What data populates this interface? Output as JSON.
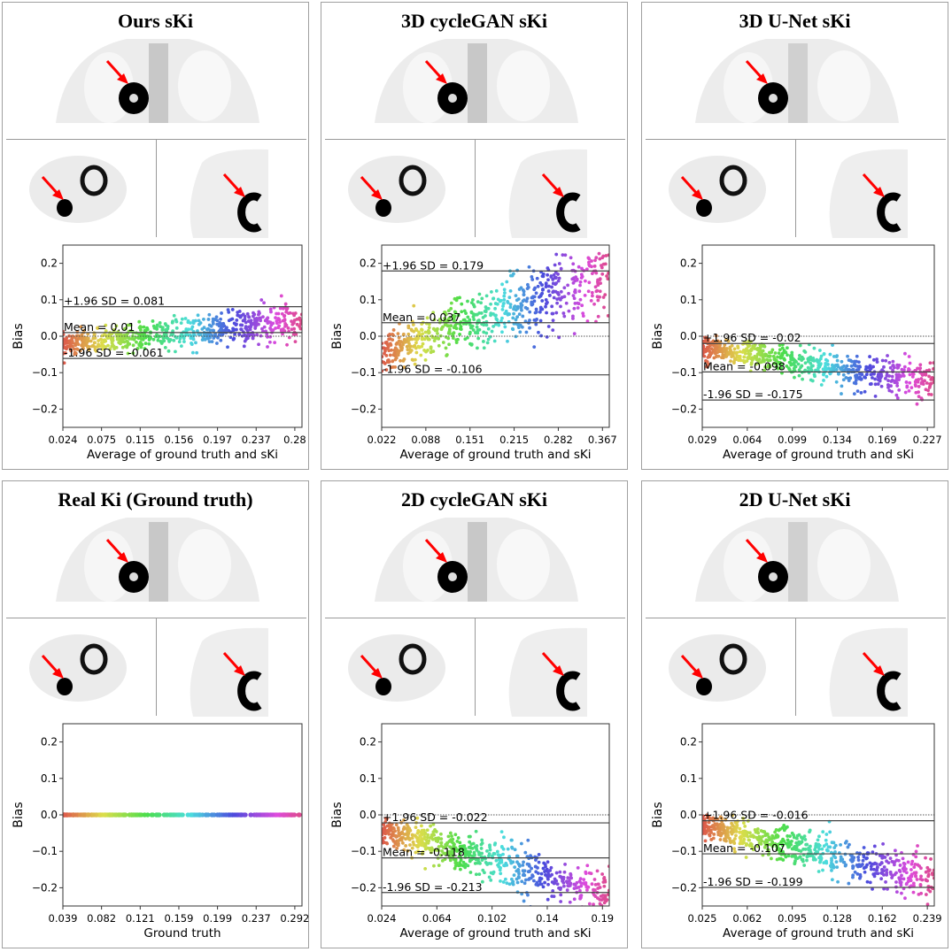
{
  "colors": {
    "line": "#444444",
    "arrow": "#ff0000",
    "lesion": "#000000",
    "tissue": "#d8d8d8"
  },
  "chart_data": [
    {
      "type": "scatter",
      "title": "Ours sKi",
      "xlabel": "Average of ground truth and sKi",
      "ylabel": "Bias",
      "ylim": [
        -0.25,
        0.25
      ],
      "yticks": [
        "0.2",
        "0.1",
        "0.0",
        "−0.1",
        "−0.2"
      ],
      "ytick_values": [
        0.2,
        0.1,
        0,
        -0.1,
        -0.2
      ],
      "xlim": [
        0.024,
        0.29
      ],
      "xticks": [
        "0.024",
        "0.075",
        "0.115",
        "0.156",
        "0.197",
        "0.237",
        "0.28"
      ],
      "upper": {
        "value": 0.081,
        "label": "+1.96 SD = 0.081"
      },
      "mean": {
        "value": 0.01,
        "label": "Mean = 0.01"
      },
      "lower": {
        "value": -0.061,
        "label": "-1.96 SD = -0.061"
      },
      "trend": [
        -0.025,
        0.045
      ],
      "zero_line": "dotted",
      "grid": false
    },
    {
      "type": "scatter",
      "title": "3D cycleGAN sKi",
      "xlabel": "Average of ground truth and sKi",
      "ylabel": "Bias",
      "ylim": [
        -0.25,
        0.25
      ],
      "yticks": [
        "0.2",
        "0.1",
        "0.0",
        "−0.1",
        "−0.2"
      ],
      "ytick_values": [
        0.2,
        0.1,
        0,
        -0.1,
        -0.2
      ],
      "xlim": [
        0.022,
        0.369
      ],
      "xticks": [
        "0.022",
        "0.088",
        "0.151",
        "0.215",
        "0.282",
        "0.367"
      ],
      "upper": {
        "value": 0.179,
        "label": "+1.96 SD = 0.179"
      },
      "mean": {
        "value": 0.037,
        "label": "Mean = 0.037"
      },
      "lower": {
        "value": -0.106,
        "label": "-1.96 SD = -0.106"
      },
      "trend": [
        -0.045,
        0.165
      ],
      "zero_line": "dotted",
      "grid": false
    },
    {
      "type": "scatter",
      "title": "3D U-Net sKi",
      "xlabel": "Average of ground truth and sKi",
      "ylabel": "Bias",
      "ylim": [
        -0.25,
        0.25
      ],
      "yticks": [
        "0.2",
        "0.1",
        "0.0",
        "−0.1",
        "−0.2"
      ],
      "ytick_values": [
        0.2,
        0.1,
        0,
        -0.1,
        -0.2
      ],
      "xlim": [
        0.029,
        0.232
      ],
      "xticks": [
        "0.029",
        "0.064",
        "0.099",
        "0.134",
        "0.169",
        "0.227"
      ],
      "upper": {
        "value": -0.02,
        "label": "+1.96 SD = -0.02"
      },
      "mean": {
        "value": -0.098,
        "label": "Mean = -0.098"
      },
      "lower": {
        "value": -0.175,
        "label": "-1.96 SD = -0.175"
      },
      "trend": [
        -0.03,
        -0.13
      ],
      "zero_line": "dotted",
      "grid": false
    },
    {
      "type": "scatter",
      "title": "Real Ki (Ground truth)",
      "xlabel": "Ground truth",
      "ylabel": "Bias",
      "ylim": [
        -0.25,
        0.25
      ],
      "yticks": [
        "0.2",
        "0.1",
        "0.0",
        "−0.1",
        "−0.2"
      ],
      "ytick_values": [
        0.2,
        0.1,
        0,
        -0.1,
        -0.2
      ],
      "xlim": [
        0.039,
        0.293
      ],
      "xticks": [
        "0.039",
        "0.082",
        "0.121",
        "0.159",
        "0.199",
        "0.237",
        "0.292"
      ],
      "trend": [
        0,
        0
      ],
      "grid": false
    },
    {
      "type": "scatter",
      "title": "2D cycleGAN sKi",
      "xlabel": "Average of ground truth and sKi",
      "ylabel": "Bias",
      "ylim": [
        -0.25,
        0.25
      ],
      "yticks": [
        "0.2",
        "0.1",
        "0.0",
        "−0.1",
        "−0.2"
      ],
      "ytick_values": [
        0.2,
        0.1,
        0,
        -0.1,
        -0.2
      ],
      "xlim": [
        0.024,
        0.193
      ],
      "xticks": [
        "0.024",
        "0.064",
        "0.102",
        "0.14",
        "0.19"
      ],
      "upper": {
        "value": -0.022,
        "label": "+1.96 SD = -0.022"
      },
      "mean": {
        "value": -0.118,
        "label": "Mean = -0.118"
      },
      "lower": {
        "value": -0.213,
        "label": "-1.96 SD = -0.213"
      },
      "trend": [
        -0.04,
        -0.215
      ],
      "zero_line": "dotted",
      "grid": false
    },
    {
      "type": "scatter",
      "title": "2D U-Net sKi",
      "xlabel": "Average of ground truth and sKi",
      "ylabel": "Bias",
      "ylim": [
        -0.25,
        0.25
      ],
      "yticks": [
        "0.2",
        "0.1",
        "0.0",
        "−0.1",
        "−0.2"
      ],
      "ytick_values": [
        0.2,
        0.1,
        0,
        -0.1,
        -0.2
      ],
      "xlim": [
        0.025,
        0.241
      ],
      "xticks": [
        "0.025",
        "0.062",
        "0.095",
        "0.128",
        "0.162",
        "0.239"
      ],
      "upper": {
        "value": -0.016,
        "label": "+1.96 SD = -0.016"
      },
      "mean": {
        "value": -0.107,
        "label": "Mean = -0.107"
      },
      "lower": {
        "value": -0.199,
        "label": "-1.96 SD = -0.199"
      },
      "trend": [
        -0.03,
        -0.18
      ],
      "zero_line": "dotted",
      "grid": false
    }
  ]
}
